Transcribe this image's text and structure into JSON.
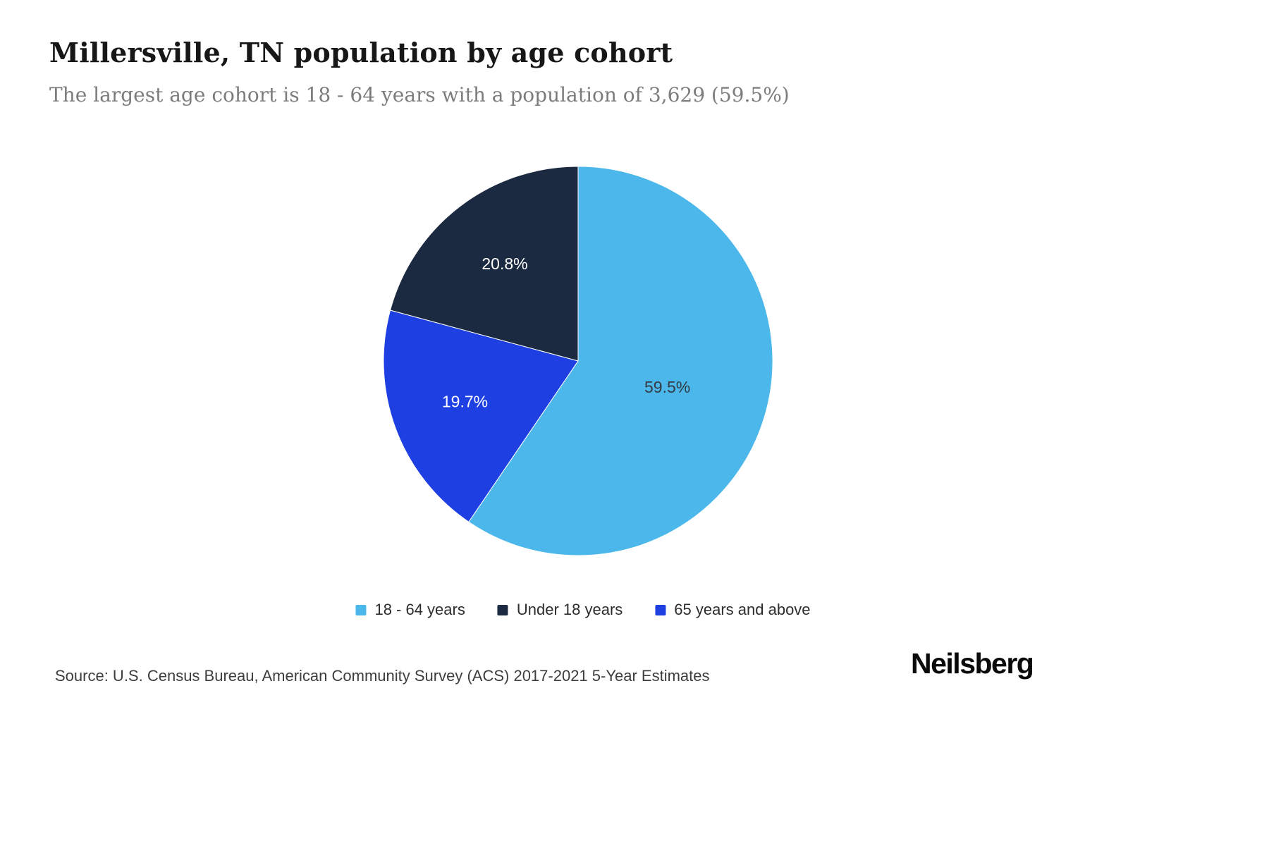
{
  "header": {
    "title": "Millersville, TN population by age cohort",
    "subtitle": "The largest age cohort is 18 - 64 years with a population of 3,629 (59.5%)"
  },
  "chart_data": {
    "type": "pie",
    "title": "Millersville, TN population by age cohort",
    "start_angle_deg": 0,
    "direction": "clockwise",
    "value_format": "percent",
    "largest_cohort": {
      "label": "18 - 64 years",
      "population": "3,629",
      "percent": 59.5
    },
    "slices": [
      {
        "id": "18-64-years",
        "label": "18 - 64 years",
        "value": 59.5,
        "color": "#4CB7EA",
        "label_color": "#333c44"
      },
      {
        "id": "65-years-and-above",
        "label": "65 years and above",
        "value": 19.7,
        "color": "#1E3FE2",
        "label_color": "#ffffff"
      },
      {
        "id": "under-18-years",
        "label": "Under 18 years",
        "value": 20.8,
        "color": "#1B2A40",
        "label_color": "#ffffff"
      }
    ],
    "legend_order": [
      0,
      2,
      1
    ],
    "legend_position": "bottom"
  },
  "footer": {
    "source": "Source: U.S. Census Bureau, American Community Survey (ACS) 2017-2021 5-Year Estimates",
    "brand": "Neilsberg"
  }
}
